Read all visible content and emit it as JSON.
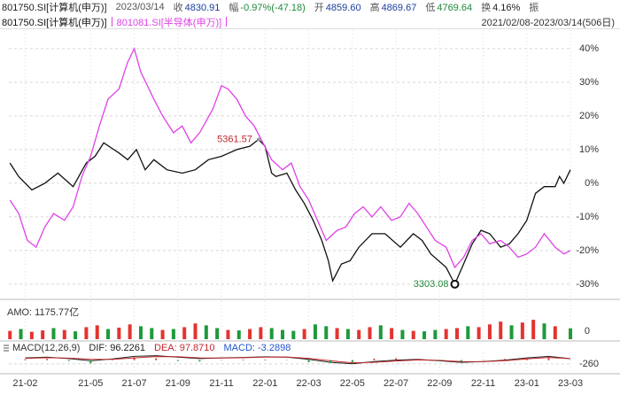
{
  "header": {
    "date": "2023/03/14",
    "fields": [
      {
        "label": "收",
        "value": "4830.91",
        "color": "#1a3f9c"
      },
      {
        "label": "幅",
        "value": "-0.97%(-47.18)",
        "color": "#1d8a3a"
      },
      {
        "label": "开",
        "value": "4859.60",
        "color": "#1a3f9c"
      },
      {
        "label": "高",
        "value": "4869.67",
        "color": "#1a3f9c"
      },
      {
        "label": "低",
        "value": "4769.64",
        "color": "#1d8a3a"
      },
      {
        "label": "换",
        "value": "4.16%",
        "color": "#222222"
      }
    ],
    "trailing": "振",
    "range_label": "2021/02/08-2023/03/14(506日)"
  },
  "chart_data": [
    {
      "type": "line",
      "xlim": [
        -0.75,
        25.08
      ],
      "xticks": [
        {
          "value": 0,
          "label": "21-02"
        },
        {
          "value": 3,
          "label": "21-05"
        },
        {
          "value": 5,
          "label": "21-07"
        },
        {
          "value": 7,
          "label": "21-09"
        },
        {
          "value": 9,
          "label": "21-11"
        },
        {
          "value": 11,
          "label": "22-01"
        },
        {
          "value": 13,
          "label": "22-03"
        },
        {
          "value": 15,
          "label": "22-05"
        },
        {
          "value": 17,
          "label": "22-07"
        },
        {
          "value": 19,
          "label": "22-09"
        },
        {
          "value": 21,
          "label": "22-11"
        },
        {
          "value": 23,
          "label": "23-01"
        },
        {
          "value": 25,
          "label": "23-03"
        }
      ],
      "ylim": [
        -34.5,
        45.5
      ],
      "yticks": [
        {
          "value": 40,
          "label": "40%"
        },
        {
          "value": 30,
          "label": "30%"
        },
        {
          "value": 20,
          "label": "20%"
        },
        {
          "value": 10,
          "label": "10%"
        },
        {
          "value": 0,
          "label": "0%"
        },
        {
          "value": -10,
          "label": "-10%"
        },
        {
          "value": -20,
          "label": "-20%"
        },
        {
          "value": -30,
          "label": "-30%"
        }
      ],
      "grid": true,
      "annotations": [
        "5361.57",
        "3303.08"
      ],
      "annotation_colors": [
        "#c0282d",
        "#1d8a3a"
      ],
      "series": [
        {
          "name": "801750.SI[计算机(申万)]",
          "color": "#111111",
          "x": [
            -0.7,
            -0.3,
            0.3,
            0.9,
            1.5,
            2.2,
            2.8,
            3.2,
            3.6,
            4.3,
            4.7,
            5.1,
            5.5,
            5.9,
            6.5,
            7.2,
            7.8,
            8.4,
            9.0,
            9.7,
            10.3,
            10.7,
            11.0,
            11.3,
            11.5,
            12.0,
            12.4,
            12.8,
            13.2,
            13.6,
            13.9,
            14.1,
            14.5,
            14.9,
            15.3,
            15.9,
            16.5,
            17.2,
            17.8,
            18.2,
            18.6,
            19.3,
            19.7,
            20.1,
            20.5,
            20.9,
            21.3,
            21.8,
            22.2,
            22.6,
            23.0,
            23.4,
            23.8,
            24.3,
            24.5,
            24.7,
            25.0
          ],
          "values": [
            6,
            2,
            -2,
            0,
            3,
            -1,
            6,
            8,
            12,
            9,
            7,
            10,
            4,
            7,
            4,
            3,
            4,
            7,
            8,
            10,
            11,
            13,
            11,
            3,
            2,
            3,
            -2,
            -6,
            -11,
            -17,
            -23,
            -29,
            -24,
            -23,
            -19,
            -15,
            -15,
            -19,
            -15,
            -17,
            -21,
            -25,
            -30,
            -24,
            -18,
            -14,
            -15,
            -19,
            -18,
            -15,
            -11,
            -3,
            -1,
            -1,
            2,
            0,
            4
          ]
        },
        {
          "name": "801081.SI[半导体(申万)]",
          "color": "#e040e8",
          "x": [
            -0.7,
            -0.3,
            0.1,
            0.5,
            0.9,
            1.3,
            1.8,
            2.2,
            2.6,
            3.0,
            3.4,
            3.8,
            4.3,
            4.7,
            5.0,
            5.3,
            5.6,
            5.9,
            6.3,
            6.8,
            7.2,
            7.6,
            8.0,
            8.6,
            9.0,
            9.3,
            9.7,
            10.1,
            10.5,
            10.9,
            11.3,
            11.8,
            12.2,
            12.6,
            13.0,
            13.4,
            13.8,
            14.3,
            14.7,
            15.1,
            15.5,
            15.9,
            16.3,
            16.8,
            17.2,
            17.6,
            18.0,
            18.4,
            18.8,
            19.3,
            19.7,
            20.1,
            20.5,
            20.9,
            21.3,
            21.8,
            22.2,
            22.6,
            23.0,
            23.4,
            23.8,
            24.3,
            24.7,
            25.0
          ],
          "values": [
            -5,
            -9,
            -17,
            -19,
            -13,
            -9,
            -11,
            -7,
            2,
            8,
            17,
            25,
            28,
            36,
            40,
            33,
            29,
            25,
            20,
            15,
            17,
            12,
            15,
            22,
            29,
            28,
            25,
            20,
            17,
            12,
            7,
            4,
            6,
            -1,
            -5,
            -11,
            -17,
            -14,
            -13,
            -9,
            -7,
            -10,
            -7,
            -11,
            -10,
            -6,
            -9,
            -13,
            -17,
            -19,
            -25,
            -22,
            -17,
            -15,
            -18,
            -17,
            -19,
            -22,
            -21,
            -19,
            -15,
            -19,
            -21,
            -20
          ]
        }
      ]
    },
    {
      "type": "bar",
      "title": "AMO: 1175.77亿",
      "xlim": [
        -0.75,
        25.08
      ],
      "ylim": [
        0,
        2200
      ],
      "yticks": [
        0
      ],
      "x": [
        -0.7,
        -0.2,
        0.3,
        0.8,
        1.3,
        1.8,
        2.3,
        2.8,
        3.3,
        3.8,
        4.3,
        4.8,
        5.3,
        5.8,
        6.3,
        6.8,
        7.3,
        7.8,
        8.3,
        8.8,
        9.3,
        9.8,
        10.3,
        10.8,
        11.3,
        11.8,
        12.3,
        12.8,
        13.3,
        13.8,
        14.3,
        14.8,
        15.3,
        15.8,
        16.3,
        16.8,
        17.3,
        17.8,
        18.3,
        18.8,
        19.3,
        19.8,
        20.3,
        20.8,
        21.3,
        21.8,
        22.3,
        22.8,
        23.3,
        23.8,
        24.3,
        25.0
      ],
      "values": [
        900,
        1100,
        800,
        950,
        1200,
        1000,
        850,
        1300,
        1500,
        1100,
        1250,
        1600,
        1400,
        1200,
        1000,
        1100,
        1300,
        1700,
        1500,
        1200,
        1000,
        950,
        1100,
        1300,
        1200,
        1000,
        900,
        1100,
        1600,
        1400,
        1200,
        1100,
        1000,
        1300,
        1500,
        1200,
        1000,
        900,
        850,
        1000,
        1100,
        1200,
        1400,
        1300,
        1600,
        1900,
        1500,
        1800,
        2100,
        1700,
        1400,
        1175.77
      ],
      "colors": [
        "#e3342f",
        "#1d9a3a",
        "#e3342f",
        "#e3342f",
        "#1d9a3a",
        "#e3342f",
        "#1d9a3a",
        "#e3342f",
        "#e3342f",
        "#1d9a3a",
        "#e3342f",
        "#e3342f",
        "#1d9a3a",
        "#1d9a3a",
        "#e3342f",
        "#1d9a3a",
        "#e3342f",
        "#e3342f",
        "#1d9a3a",
        "#1d9a3a",
        "#e3342f",
        "#1d9a3a",
        "#e3342f",
        "#e3342f",
        "#1d9a3a",
        "#1d9a3a",
        "#1d9a3a",
        "#e3342f",
        "#1d9a3a",
        "#1d9a3a",
        "#e3342f",
        "#1d9a3a",
        "#e3342f",
        "#e3342f",
        "#1d9a3a",
        "#e3342f",
        "#1d9a3a",
        "#e3342f",
        "#1d9a3a",
        "#1d9a3a",
        "#e3342f",
        "#e3342f",
        "#1d9a3a",
        "#e3342f",
        "#e3342f",
        "#e3342f",
        "#1d9a3a",
        "#e3342f",
        "#e3342f",
        "#1d9a3a",
        "#e3342f",
        "#1d9a3a"
      ]
    },
    {
      "type": "macd",
      "title": "MACD(12,26,9)",
      "xlim": [
        -0.75,
        25.08
      ],
      "ylim": [
        -804,
        1296
      ],
      "yticks": [
        -260
      ],
      "up_color": "#e3342f",
      "down_color": "#1d9a3a",
      "x": [
        0,
        1,
        2,
        3,
        4,
        5,
        6,
        7,
        8,
        9,
        10,
        11,
        12,
        13,
        14,
        15,
        16,
        17,
        18,
        19,
        20,
        21,
        22,
        23,
        24,
        25
      ],
      "series": [
        {
          "name": "DIF: 96.2261",
          "color": "#222222",
          "kind": "line",
          "values": [
            150,
            200,
            100,
            -50,
            80,
            250,
            300,
            200,
            100,
            150,
            180,
            220,
            200,
            50,
            -150,
            -250,
            -100,
            0,
            50,
            -50,
            -150,
            -100,
            0,
            150,
            250,
            96.2261
          ]
        },
        {
          "name": "DEA: 97.8710",
          "color": "#c0282d",
          "kind": "line",
          "values": [
            120,
            160,
            130,
            60,
            50,
            150,
            240,
            230,
            150,
            140,
            160,
            200,
            210,
            120,
            -50,
            -180,
            -150,
            -60,
            10,
            -20,
            -100,
            -110,
            -40,
            80,
            180,
            97.871
          ]
        },
        {
          "name": "MACD: -3.2898",
          "color": "#2255cc",
          "kind": "bar",
          "values": [
            60,
            80,
            -60,
            -220,
            60,
            200,
            120,
            -60,
            -100,
            20,
            40,
            40,
            -20,
            -140,
            -200,
            -140,
            100,
            120,
            80,
            -60,
            -100,
            20,
            80,
            140,
            140,
            -3.2898
          ]
        }
      ]
    }
  ]
}
